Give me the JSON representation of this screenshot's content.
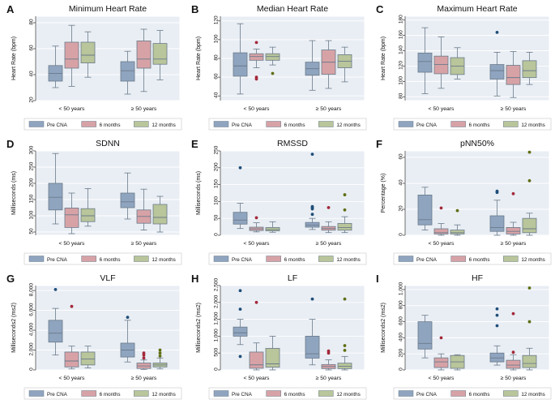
{
  "figure": {
    "colors": {
      "pre_cna": "#8fa4bf",
      "six_months": "#d7a2a6",
      "twelve_months": "#b9c59a",
      "pre_cna_dot": "#1f4e79",
      "six_months_dot": "#a3293a",
      "twelve_months_dot": "#5f6e14",
      "panel_bg": "#e9eef4",
      "frame": "#ffffff",
      "grid": "#ffffff",
      "box_edge": "#6a7a8a"
    }
  },
  "chart_data": [
    {
      "panel_letter": "A",
      "type": "box",
      "title": "Minimum Heart Rate",
      "ylabel": "Heart Rate (bpm)",
      "ylim": [
        20,
        85
      ],
      "yticks": [
        20,
        40,
        60,
        80
      ],
      "ytick_labels": [
        "20",
        "40",
        "60",
        "80"
      ],
      "categories": [
        "< 50 years",
        "≥ 50 years"
      ],
      "legend": [
        "Pre CNA",
        "6 months",
        "12 months"
      ],
      "groups": [
        {
          "category": "< 50 years",
          "series": "Pre CNA",
          "min": 30,
          "q1": 35,
          "median": 41,
          "q3": 47,
          "max": 62,
          "outliers": []
        },
        {
          "category": "< 50 years",
          "series": "6 months",
          "min": 31,
          "q1": 45,
          "median": 52,
          "q3": 65,
          "max": 78,
          "outliers": []
        },
        {
          "category": "< 50 years",
          "series": "12 months",
          "min": 38,
          "q1": 49,
          "median": 55,
          "q3": 65,
          "max": 73,
          "outliers": []
        },
        {
          "category": "≥ 50 years",
          "series": "Pre CNA",
          "min": 25,
          "q1": 35,
          "median": 43,
          "q3": 50,
          "max": 58,
          "outliers": []
        },
        {
          "category": "≥ 50 years",
          "series": "6 months",
          "min": 27,
          "q1": 45,
          "median": 52,
          "q3": 66,
          "max": 75,
          "outliers": []
        },
        {
          "category": "≥ 50 years",
          "series": "12 months",
          "min": 36,
          "q1": 48,
          "median": 52,
          "q3": 64,
          "max": 74,
          "outliers": []
        }
      ]
    },
    {
      "panel_letter": "B",
      "type": "box",
      "title": "Median Heart Rate",
      "ylabel": "Heart Rate (bpm)",
      "ylim": [
        35,
        125
      ],
      "yticks": [
        40,
        60,
        80,
        100,
        120
      ],
      "ytick_labels": [
        "40",
        "60",
        "80",
        "100",
        "120"
      ],
      "categories": [
        "< 50 years",
        "≥ 50 years"
      ],
      "legend": [
        "Pre CNA",
        "6 months",
        "12 months"
      ],
      "groups": [
        {
          "category": "< 50 years",
          "series": "Pre CNA",
          "min": 42,
          "q1": 61,
          "median": 72,
          "q3": 86,
          "max": 117,
          "outliers": []
        },
        {
          "category": "< 50 years",
          "series": "6 months",
          "min": 70,
          "q1": 78,
          "median": 82,
          "q3": 85,
          "max": 90,
          "outliers": [
            97,
            60,
            58
          ]
        },
        {
          "category": "< 50 years",
          "series": "12 months",
          "min": 73,
          "q1": 78,
          "median": 82,
          "q3": 85,
          "max": 92,
          "outliers": [
            64
          ]
        },
        {
          "category": "≥ 50 years",
          "series": "Pre CNA",
          "min": 46,
          "q1": 62,
          "median": 69,
          "q3": 76,
          "max": 99,
          "outliers": []
        },
        {
          "category": "≥ 50 years",
          "series": "6 months",
          "min": 48,
          "q1": 63,
          "median": 76,
          "q3": 89,
          "max": 99,
          "outliers": []
        },
        {
          "category": "≥ 50 years",
          "series": "12 months",
          "min": 55,
          "q1": 70,
          "median": 77,
          "q3": 84,
          "max": 92,
          "outliers": []
        }
      ]
    },
    {
      "panel_letter": "C",
      "type": "box",
      "title": "Maximum Heart Rate",
      "ylabel": "Heart Rate (bpm)",
      "ylim": [
        75,
        185
      ],
      "yticks": [
        80,
        100,
        120,
        140,
        160,
        180
      ],
      "ytick_labels": [
        "80",
        "100",
        "120",
        "140",
        "160",
        "180"
      ],
      "categories": [
        "< 50 years",
        "≥ 50 years"
      ],
      "legend": [
        "Pre CNA",
        "6 months",
        "12 months"
      ],
      "groups": [
        {
          "category": "< 50 years",
          "series": "Pre CNA",
          "min": 84,
          "q1": 112,
          "median": 126,
          "q3": 137,
          "max": 170,
          "outliers": []
        },
        {
          "category": "< 50 years",
          "series": "6 months",
          "min": 91,
          "q1": 110,
          "median": 122,
          "q3": 133,
          "max": 158,
          "outliers": []
        },
        {
          "category": "< 50 years",
          "series": "12 months",
          "min": 103,
          "q1": 109,
          "median": 120,
          "q3": 131,
          "max": 144,
          "outliers": []
        },
        {
          "category": "≥ 50 years",
          "series": "Pre CNA",
          "min": 81,
          "q1": 103,
          "median": 114,
          "q3": 122,
          "max": 138,
          "outliers": [
            164
          ]
        },
        {
          "category": "≥ 50 years",
          "series": "6 months",
          "min": 79,
          "q1": 96,
          "median": 105,
          "q3": 121,
          "max": 139,
          "outliers": []
        },
        {
          "category": "≥ 50 years",
          "series": "12 months",
          "min": 96,
          "q1": 105,
          "median": 114,
          "q3": 127,
          "max": 138,
          "outliers": []
        }
      ]
    },
    {
      "panel_letter": "D",
      "type": "box",
      "title": "SDNN",
      "ylabel": "Milliseconds (ms)",
      "ylim": [
        40,
        300
      ],
      "yticks": [
        50,
        100,
        150,
        200,
        250,
        300
      ],
      "ytick_labels": [
        "50",
        "100",
        "150",
        "200",
        "250",
        "300"
      ],
      "categories": [
        "< 50 years",
        "≥ 50 years"
      ],
      "legend": [
        "Pre CNA",
        "6 months",
        "12 months"
      ],
      "groups": [
        {
          "category": "< 50 years",
          "series": "Pre CNA",
          "min": 75,
          "q1": 118,
          "median": 157,
          "q3": 200,
          "max": 292,
          "outliers": []
        },
        {
          "category": "< 50 years",
          "series": "6 months",
          "min": 45,
          "q1": 64,
          "median": 103,
          "q3": 124,
          "max": 170,
          "outliers": []
        },
        {
          "category": "< 50 years",
          "series": "12 months",
          "min": 68,
          "q1": 82,
          "median": 100,
          "q3": 122,
          "max": 184,
          "outliers": []
        },
        {
          "category": "≥ 50 years",
          "series": "Pre CNA",
          "min": 90,
          "q1": 125,
          "median": 143,
          "q3": 170,
          "max": 232,
          "outliers": []
        },
        {
          "category": "≥ 50 years",
          "series": "6 months",
          "min": 56,
          "q1": 77,
          "median": 98,
          "q3": 118,
          "max": 182,
          "outliers": []
        },
        {
          "category": "≥ 50 years",
          "series": "12 months",
          "min": 50,
          "q1": 75,
          "median": 95,
          "q3": 135,
          "max": 160,
          "outliers": []
        }
      ]
    },
    {
      "panel_letter": "E",
      "type": "box",
      "title": "RMSSD",
      "ylabel": "Milliseconds (ms)",
      "ylim": [
        0,
        250
      ],
      "yticks": [
        0,
        50,
        100,
        150,
        200,
        250
      ],
      "ytick_labels": [
        "0",
        "50",
        "100",
        "150",
        "200",
        "250"
      ],
      "categories": [
        "< 50 years",
        "≥ 50 years"
      ],
      "legend": [
        "Pre CNA",
        "6 months",
        "12 months"
      ],
      "groups": [
        {
          "category": "< 50 years",
          "series": "Pre CNA",
          "min": 20,
          "q1": 33,
          "median": 45,
          "q3": 68,
          "max": 95,
          "outliers": [
            200
          ]
        },
        {
          "category": "< 50 years",
          "series": "6 months",
          "min": 10,
          "q1": 14,
          "median": 19,
          "q3": 24,
          "max": 37,
          "outliers": [
            52
          ]
        },
        {
          "category": "< 50 years",
          "series": "12 months",
          "min": 9,
          "q1": 13,
          "median": 17,
          "q3": 23,
          "max": 40,
          "outliers": []
        },
        {
          "category": "≥ 50 years",
          "series": "Pre CNA",
          "min": 17,
          "q1": 24,
          "median": 30,
          "q3": 38,
          "max": 50,
          "outliers": [
            62,
            78,
            82,
            85,
            240
          ]
        },
        {
          "category": "≥ 50 years",
          "series": "6 months",
          "min": 8,
          "q1": 15,
          "median": 20,
          "q3": 26,
          "max": 40,
          "outliers": [
            82
          ]
        },
        {
          "category": "≥ 50 years",
          "series": "12 months",
          "min": 8,
          "q1": 15,
          "median": 23,
          "q3": 35,
          "max": 55,
          "outliers": [
            75,
            120
          ]
        }
      ]
    },
    {
      "panel_letter": "F",
      "type": "box",
      "title": "pNN50%",
      "ylabel": "Percentage (%)",
      "ylim": [
        0,
        65
      ],
      "yticks": [
        0,
        20,
        40,
        60
      ],
      "ytick_labels": [
        "0",
        "20",
        "40",
        "60"
      ],
      "categories": [
        "< 50 years",
        "≥ 50 years"
      ],
      "legend": [
        "Pre CNA",
        "6 months",
        "12 months"
      ],
      "groups": [
        {
          "category": "< 50 years",
          "series": "Pre CNA",
          "min": 4,
          "q1": 8,
          "median": 12,
          "q3": 31,
          "max": 37,
          "outliers": []
        },
        {
          "category": "< 50 years",
          "series": "6 months",
          "min": 0,
          "q1": 1,
          "median": 2,
          "q3": 5,
          "max": 9,
          "outliers": [
            21
          ]
        },
        {
          "category": "< 50 years",
          "series": "12 months",
          "min": 0,
          "q1": 1,
          "median": 2,
          "q3": 4,
          "max": 8,
          "outliers": [
            19
          ]
        },
        {
          "category": "≥ 50 years",
          "series": "Pre CNA",
          "min": 0,
          "q1": 3,
          "median": 6,
          "q3": 15,
          "max": 27,
          "outliers": [
            33,
            34
          ]
        },
        {
          "category": "≥ 50 years",
          "series": "6 months",
          "min": 0,
          "q1": 1,
          "median": 3,
          "q3": 6,
          "max": 10,
          "outliers": [
            32
          ]
        },
        {
          "category": "≥ 50 years",
          "series": "12 months",
          "min": 0,
          "q1": 2,
          "median": 5,
          "q3": 13,
          "max": 17,
          "outliers": [
            42,
            64
          ]
        }
      ]
    },
    {
      "panel_letter": "G",
      "type": "box",
      "title": "VLF",
      "ylabel": "Milliseconds2 (ms2)",
      "ylim": [
        0,
        8500
      ],
      "yticks": [
        0,
        2000,
        4000,
        6000,
        8000
      ],
      "ytick_labels": [
        "0",
        "2,000",
        "4,000",
        "6,000",
        "8,000"
      ],
      "categories": [
        "< 50 years",
        "≥ 50 years"
      ],
      "legend": [
        "Pre CNA",
        "6 months",
        "12 months"
      ],
      "groups": [
        {
          "category": "< 50 years",
          "series": "Pre CNA",
          "min": 1500,
          "q1": 2800,
          "median": 3700,
          "q3": 5000,
          "max": 6200,
          "outliers": [
            8100
          ]
        },
        {
          "category": "< 50 years",
          "series": "6 months",
          "min": 100,
          "q1": 300,
          "median": 900,
          "q3": 1800,
          "max": 2400,
          "outliers": [
            6400
          ]
        },
        {
          "category": "< 50 years",
          "series": "12 months",
          "min": 200,
          "q1": 500,
          "median": 1100,
          "q3": 1800,
          "max": 2400,
          "outliers": []
        },
        {
          "category": "≥ 50 years",
          "series": "Pre CNA",
          "min": 800,
          "q1": 1300,
          "median": 2000,
          "q3": 2700,
          "max": 5000,
          "outliers": [
            5300
          ]
        },
        {
          "category": "≥ 50 years",
          "series": "6 months",
          "min": 50,
          "q1": 150,
          "median": 400,
          "q3": 700,
          "max": 1000,
          "outliers": [
            1200,
            1500,
            1700
          ]
        },
        {
          "category": "≥ 50 years",
          "series": "12 months",
          "min": 100,
          "q1": 300,
          "median": 500,
          "q3": 700,
          "max": 1200,
          "outliers": [
            1400,
            1700,
            2000
          ]
        }
      ]
    },
    {
      "panel_letter": "H",
      "type": "box",
      "title": "LF",
      "ylabel": "Milliseconds2 (ms2)",
      "ylim": [
        0,
        2500
      ],
      "yticks": [
        0,
        500,
        1000,
        1500,
        2000,
        2500
      ],
      "ytick_labels": [
        "0",
        "500",
        "1,000",
        "1,500",
        "2,000",
        "2,500"
      ],
      "categories": [
        "< 50 years",
        "≥ 50 years"
      ],
      "legend": [
        "Pre CNA",
        "6 months",
        "12 months"
      ],
      "groups": [
        {
          "category": "< 50 years",
          "series": "Pre CNA",
          "min": 750,
          "q1": 1000,
          "median": 1100,
          "q3": 1270,
          "max": 1500,
          "outliers": [
            400,
            1800,
            2350
          ]
        },
        {
          "category": "< 50 years",
          "series": "6 months",
          "min": 0,
          "q1": 50,
          "median": 150,
          "q3": 530,
          "max": 800,
          "outliers": [
            2000
          ]
        },
        {
          "category": "< 50 years",
          "series": "12 months",
          "min": 0,
          "q1": 80,
          "median": 180,
          "q3": 640,
          "max": 1000,
          "outliers": []
        },
        {
          "category": "≥ 50 years",
          "series": "Pre CNA",
          "min": 150,
          "q1": 350,
          "median": 480,
          "q3": 1000,
          "max": 1500,
          "outliers": [
            2100
          ]
        },
        {
          "category": "≥ 50 years",
          "series": "6 months",
          "min": 0,
          "q1": 40,
          "median": 100,
          "q3": 160,
          "max": 300,
          "outliers": [
            500,
            560
          ]
        },
        {
          "category": "≥ 50 years",
          "series": "12 months",
          "min": 0,
          "q1": 40,
          "median": 110,
          "q3": 200,
          "max": 400,
          "outliers": [
            580,
            720,
            2100
          ]
        }
      ]
    },
    {
      "panel_letter": "I",
      "type": "box",
      "title": "HF",
      "ylabel": "Milliseconds2 (ms2)",
      "ylim": [
        0,
        1050
      ],
      "yticks": [
        0,
        200,
        400,
        600,
        800,
        1000
      ],
      "ytick_labels": [
        "0",
        "200",
        "400",
        "600",
        "800",
        "1,000"
      ],
      "categories": [
        "< 50 years",
        "≥ 50 years"
      ],
      "legend": [
        "Pre CNA",
        "6 months",
        "12 months"
      ],
      "groups": [
        {
          "category": "< 50 years",
          "series": "Pre CNA",
          "min": 150,
          "q1": 260,
          "median": 330,
          "q3": 600,
          "max": 680,
          "outliers": []
        },
        {
          "category": "< 50 years",
          "series": "6 months",
          "min": 0,
          "q1": 30,
          "median": 100,
          "q3": 150,
          "max": 200,
          "outliers": [
            400
          ]
        },
        {
          "category": "< 50 years",
          "series": "12 months",
          "min": 0,
          "q1": 20,
          "median": 100,
          "q3": 180,
          "max": 190,
          "outliers": []
        },
        {
          "category": "≥ 50 years",
          "series": "Pre CNA",
          "min": 60,
          "q1": 100,
          "median": 150,
          "q3": 210,
          "max": 300,
          "outliers": [
            550,
            680,
            760
          ]
        },
        {
          "category": "≥ 50 years",
          "series": "6 months",
          "min": 0,
          "q1": 20,
          "median": 60,
          "q3": 120,
          "max": 190,
          "outliers": [
            220,
            700
          ]
        },
        {
          "category": "≥ 50 years",
          "series": "12 months",
          "min": 0,
          "q1": 30,
          "median": 80,
          "q3": 180,
          "max": 270,
          "outliers": [
            600,
            1020
          ]
        }
      ]
    }
  ]
}
